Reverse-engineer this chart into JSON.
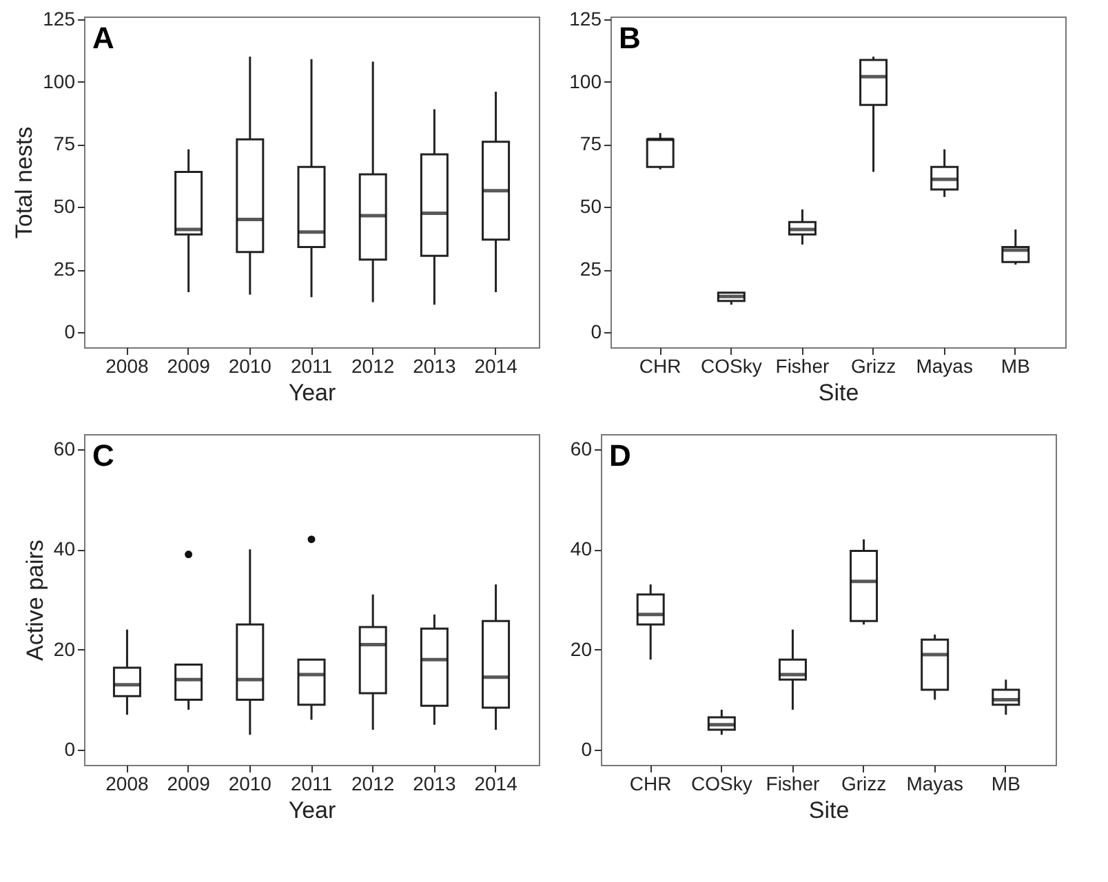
{
  "chart_data": [
    {
      "type": "box",
      "annotations": [
        "A"
      ],
      "xlabel": "Year",
      "ylabel": "Total nests",
      "categories": [
        "2008",
        "2009",
        "2010",
        "2011",
        "2012",
        "2013",
        "2014"
      ],
      "ylim": [
        -6,
        126
      ],
      "yticks": [
        0,
        25,
        50,
        75,
        100,
        125
      ],
      "boxes": [
        null,
        {
          "low": 16,
          "q1": 39,
          "median": 41,
          "q3": 64,
          "high": 73
        },
        {
          "low": 15,
          "q1": 32,
          "median": 45,
          "q3": 77,
          "high": 110
        },
        {
          "low": 14,
          "q1": 34,
          "median": 40,
          "q3": 66,
          "high": 109
        },
        {
          "low": 12,
          "q1": 29,
          "median": 46.5,
          "q3": 63,
          "high": 108
        },
        {
          "low": 11,
          "q1": 30.5,
          "median": 47.5,
          "q3": 71,
          "high": 89
        },
        {
          "low": 16,
          "q1": 37,
          "median": 56.5,
          "q3": 76,
          "high": 96
        }
      ]
    },
    {
      "type": "box",
      "annotations": [
        "B"
      ],
      "xlabel": "Site",
      "categories": [
        "CHR",
        "COSky",
        "Fisher",
        "Grizz",
        "Mayas",
        "MB"
      ],
      "ylim": [
        -6,
        126
      ],
      "yticks": [
        0,
        25,
        50,
        75,
        100,
        125
      ],
      "boxes": [
        {
          "low": 65,
          "q1": 66,
          "median": 77,
          "q3": 77,
          "high": 79.5
        },
        {
          "low": 11,
          "q1": 12.5,
          "median": 14.3,
          "q3": 15.8,
          "high": 16
        },
        {
          "low": 35,
          "q1": 39,
          "median": 41,
          "q3": 44,
          "high": 49
        },
        {
          "low": 64,
          "q1": 90.7,
          "median": 102,
          "q3": 108.7,
          "high": 110
        },
        {
          "low": 54,
          "q1": 57,
          "median": 61,
          "q3": 66,
          "high": 73
        },
        {
          "low": 27,
          "q1": 28,
          "median": 32.8,
          "q3": 34,
          "high": 41
        }
      ]
    },
    {
      "type": "box",
      "annotations": [
        "C"
      ],
      "xlabel": "Year",
      "ylabel": "Active pairs",
      "categories": [
        "2008",
        "2009",
        "2010",
        "2011",
        "2012",
        "2013",
        "2014"
      ],
      "ylim": [
        -3,
        63
      ],
      "yticks": [
        0,
        20,
        40,
        60
      ],
      "boxes": [
        {
          "low": 7,
          "q1": 10.7,
          "median": 13,
          "q3": 16.4,
          "high": 24
        },
        {
          "low": 8,
          "q1": 10,
          "median": 14,
          "q3": 17,
          "high": 17,
          "outliers": [
            39
          ]
        },
        {
          "low": 3,
          "q1": 10,
          "median": 14,
          "q3": 25,
          "high": 40
        },
        {
          "low": 6,
          "q1": 9,
          "median": 15,
          "q3": 18,
          "high": 18,
          "outliers": [
            42
          ]
        },
        {
          "low": 4,
          "q1": 11.3,
          "median": 21,
          "q3": 24.5,
          "high": 31
        },
        {
          "low": 5,
          "q1": 8.8,
          "median": 18,
          "q3": 24.2,
          "high": 27
        },
        {
          "low": 4,
          "q1": 8.4,
          "median": 14.5,
          "q3": 25.7,
          "high": 33
        }
      ]
    },
    {
      "type": "box",
      "annotations": [
        "D"
      ],
      "xlabel": "Site",
      "categories": [
        "CHR",
        "COSky",
        "Fisher",
        "Grizz",
        "Mayas",
        "MB"
      ],
      "ylim": [
        -3,
        63
      ],
      "yticks": [
        0,
        20,
        40,
        60
      ],
      "boxes": [
        {
          "low": 18,
          "q1": 25,
          "median": 27,
          "q3": 31,
          "high": 33
        },
        {
          "low": 3,
          "q1": 4,
          "median": 5,
          "q3": 6.5,
          "high": 8
        },
        {
          "low": 8,
          "q1": 14,
          "median": 15,
          "q3": 18,
          "high": 24
        },
        {
          "low": 25,
          "q1": 25.7,
          "median": 33.6,
          "q3": 39.7,
          "high": 42
        },
        {
          "low": 10,
          "q1": 12,
          "median": 19,
          "q3": 22,
          "high": 23
        },
        {
          "low": 7,
          "q1": 9,
          "median": 10,
          "q3": 12,
          "high": 14
        }
      ]
    }
  ]
}
